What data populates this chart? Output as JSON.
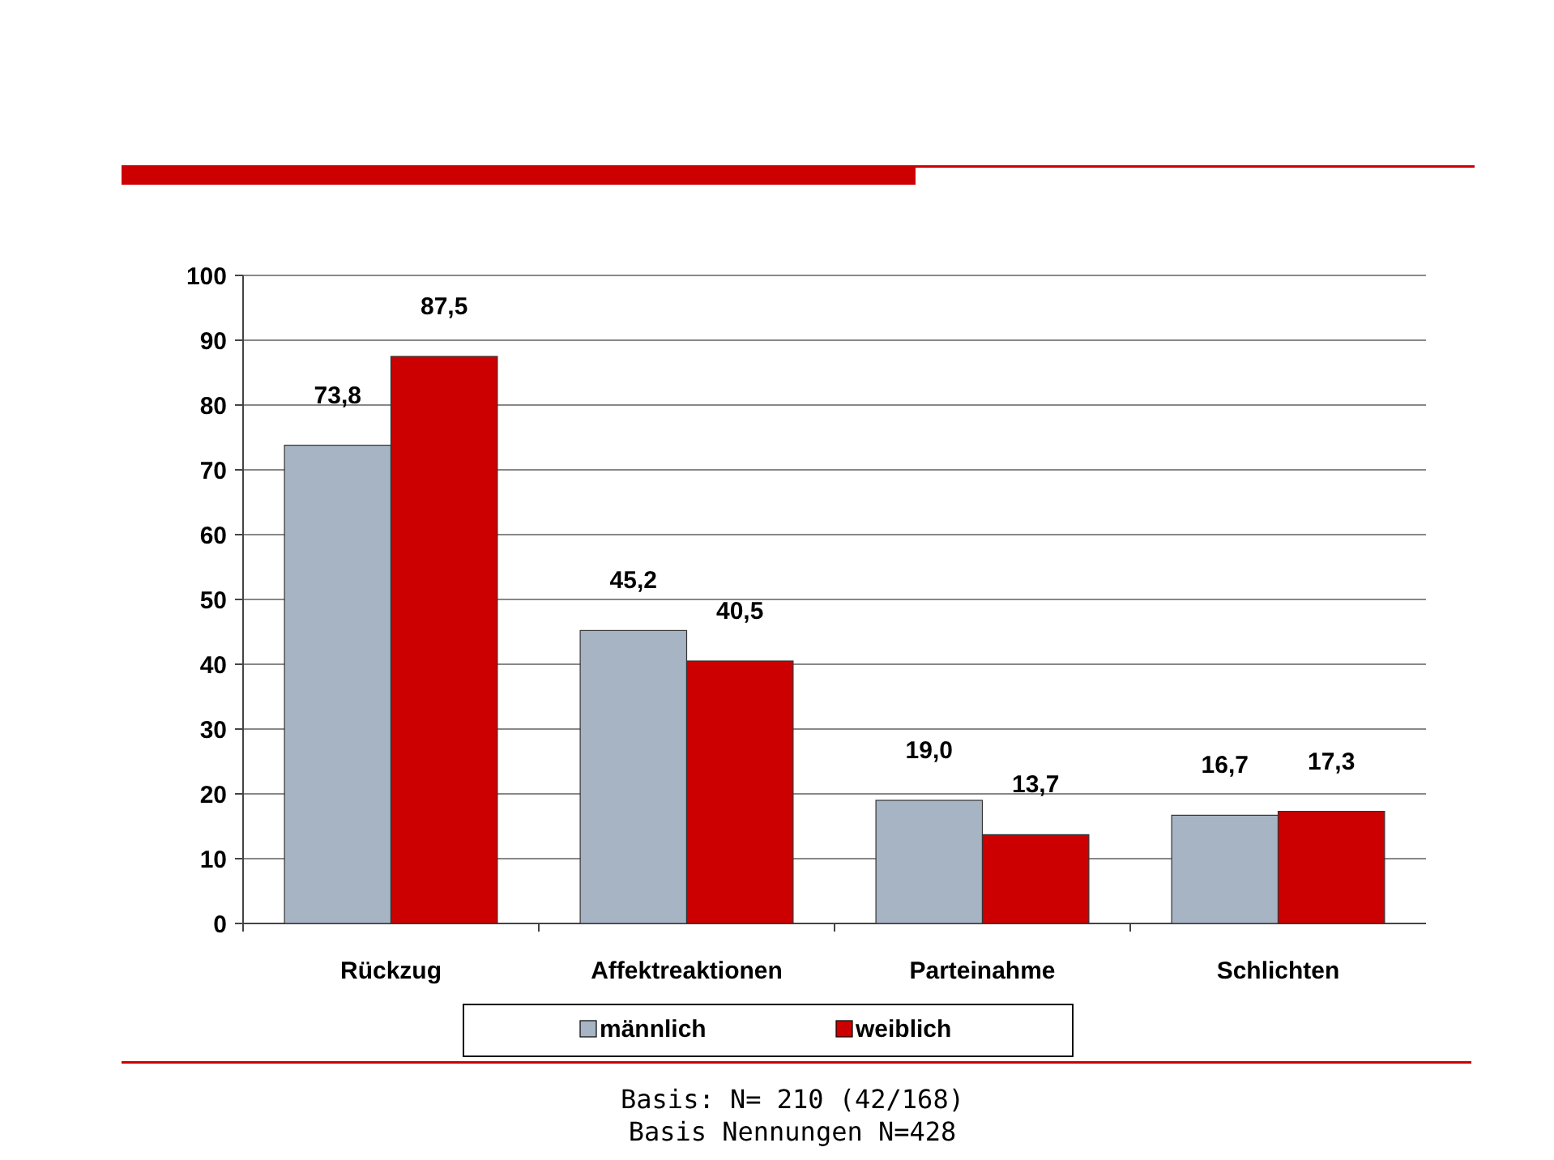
{
  "chart_data": {
    "type": "bar",
    "categories": [
      "Rückzug",
      "Affektreaktionen",
      "Parteinahme",
      "Schlichten"
    ],
    "series": [
      {
        "name": "männlich",
        "color": "#a6b4c4",
        "values": [
          73.8,
          45.2,
          19.0,
          16.7
        ],
        "value_labels": [
          "73,8",
          "45,2",
          "19,0",
          "16,7"
        ]
      },
      {
        "name": "weiblich",
        "color": "#cc0000",
        "values": [
          87.5,
          40.5,
          13.7,
          17.3
        ],
        "value_labels": [
          "87,5",
          "40,5",
          "13,7",
          "17,3"
        ]
      }
    ],
    "ylim": [
      0,
      100
    ],
    "yticks": [
      0,
      10,
      20,
      30,
      40,
      50,
      60,
      70,
      80,
      90,
      100
    ],
    "grid": "y",
    "legend": "bottom",
    "annotations": [
      "Basis: N= 210 (42/168)",
      "Basis Nennungen N=428"
    ]
  }
}
